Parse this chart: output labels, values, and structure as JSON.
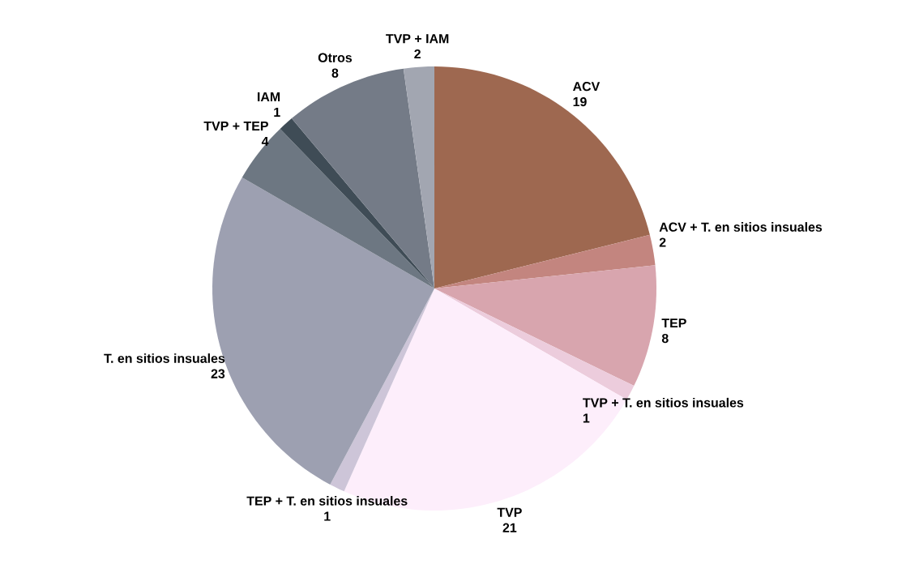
{
  "chart_data": {
    "type": "pie",
    "categories": [
      "ACV",
      "ACV + T. en sitios insuales",
      "TEP",
      "TVP + T. en sitios insuales",
      "TVP",
      "TEP + T. en sitios insuales",
      "T. en sitios insuales",
      "TVP + TEP",
      "IAM",
      "Otros",
      "TVP + IAM"
    ],
    "values": [
      19,
      2,
      8,
      1,
      21,
      1,
      23,
      4,
      1,
      8,
      2
    ],
    "colors": [
      "#9e6850",
      "#c3857f",
      "#d8a5ae",
      "#ecccdc",
      "#fdeefb",
      "#cdc5d8",
      "#9da0b1",
      "#6d7782",
      "#3f4c56",
      "#747b87",
      "#a2a6b1"
    ],
    "data_labels": true
  }
}
